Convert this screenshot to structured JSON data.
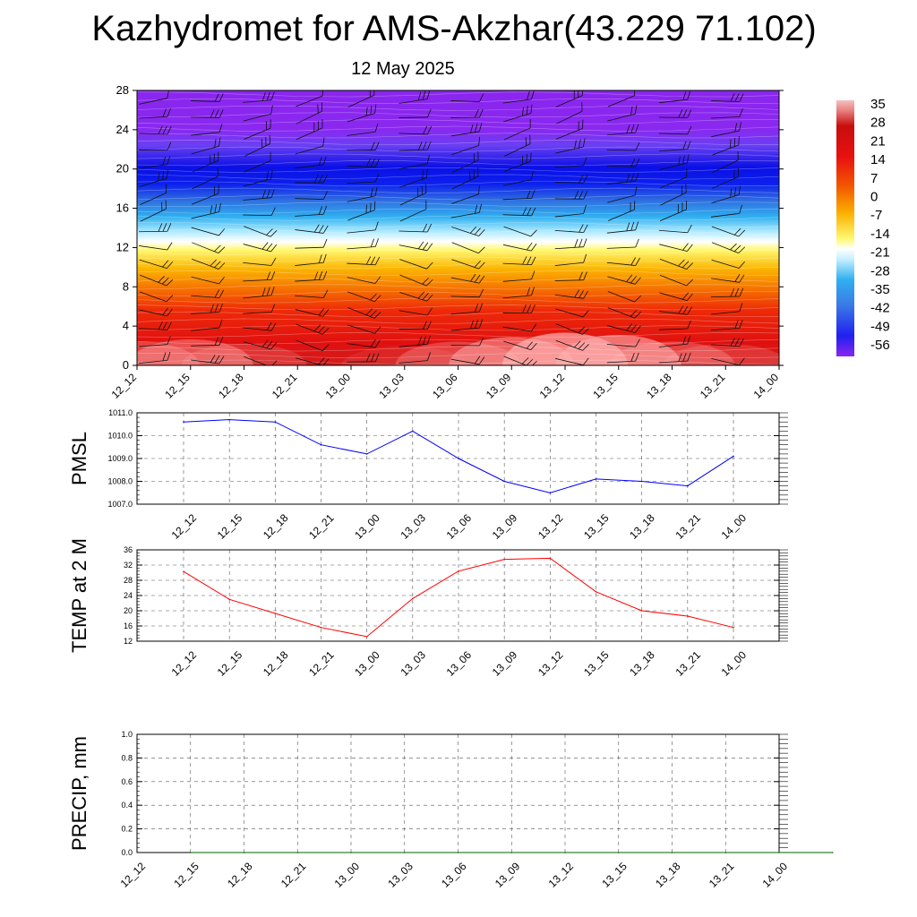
{
  "title": "Kazhydromet for AMS-Akzhar(43.229 71.102)",
  "subtitle": "12 May 2025",
  "time_labels": [
    "12_12",
    "12_15",
    "12_18",
    "12_21",
    "13_00",
    "13_03",
    "13_06",
    "13_09",
    "13_12",
    "13_15",
    "13_18",
    "13_21",
    "14_00"
  ],
  "colors": {
    "pmsl_line": "#0000ff",
    "temp_line": "#ff0000",
    "precip_line": "#006400",
    "grid": "#555555"
  },
  "chart_data": [
    {
      "type": "heatmap",
      "name": "cross-section",
      "x": [
        "12_12",
        "12_15",
        "12_18",
        "12_21",
        "13_00",
        "13_03",
        "13_06",
        "13_09",
        "13_12",
        "13_15",
        "13_18",
        "13_21",
        "14_00"
      ],
      "y_ticks": [
        0,
        4,
        8,
        12,
        16,
        20,
        24,
        28
      ],
      "ylim": [
        0,
        28
      ],
      "colorbar": {
        "labels": [
          35,
          28,
          21,
          14,
          7,
          0,
          -7,
          -14,
          -21,
          -28,
          -35,
          -42,
          -49,
          -56
        ],
        "range": [
          -60,
          38
        ]
      },
      "surface_temperature": [
        30,
        31,
        29,
        27,
        25,
        28,
        30,
        32,
        34,
        33,
        30,
        29,
        26
      ],
      "wind_barbs": true
    },
    {
      "type": "line",
      "name": "PMSL",
      "ylabel": "PMSL",
      "x": [
        "12_12",
        "12_15",
        "12_18",
        "12_21",
        "13_00",
        "13_03",
        "13_06",
        "13_09",
        "13_12",
        "13_15",
        "13_18",
        "13_21",
        "14_00"
      ],
      "values": [
        1010.6,
        1010.7,
        1010.6,
        1009.6,
        1009.2,
        1010.2,
        1009.0,
        1008.0,
        1007.5,
        1008.1,
        1008.0,
        1007.8,
        1009.1
      ],
      "y_ticks": [
        "1007.0",
        "1008.0",
        "1009.0",
        "1010.0",
        "1011.0"
      ],
      "ylim": [
        1007.0,
        1011.0
      ],
      "grid": true
    },
    {
      "type": "line",
      "name": "TEMP at 2 M",
      "ylabel": "TEMP at 2 M",
      "x": [
        "12_12",
        "12_15",
        "12_18",
        "12_21",
        "13_00",
        "13_03",
        "13_06",
        "13_09",
        "13_12",
        "13_15",
        "13_18",
        "13_21",
        "14_00"
      ],
      "values": [
        30.3,
        23.0,
        19.3,
        15.6,
        13.2,
        23.2,
        30.4,
        33.5,
        33.8,
        25.0,
        20.0,
        18.6,
        15.6
      ],
      "y_ticks": [
        "12",
        "16",
        "20",
        "24",
        "28",
        "32",
        "36"
      ],
      "ylim": [
        12,
        36
      ],
      "grid": true
    },
    {
      "type": "line",
      "name": "PRECIP, mm",
      "ylabel": "PRECIP, mm",
      "x": [
        "12_12",
        "12_15",
        "12_18",
        "12_21",
        "13_00",
        "13_03",
        "13_06",
        "13_09",
        "13_12",
        "13_15",
        "13_18",
        "13_21",
        "14_00"
      ],
      "values": [
        0,
        0,
        0,
        0,
        0,
        0,
        0,
        0,
        0,
        0,
        0,
        0,
        0
      ],
      "y_ticks": [
        "0.0",
        "0.2",
        "0.4",
        "0.6",
        "0.8",
        "1.0"
      ],
      "ylim": [
        0,
        1.0
      ],
      "grid": true
    }
  ]
}
